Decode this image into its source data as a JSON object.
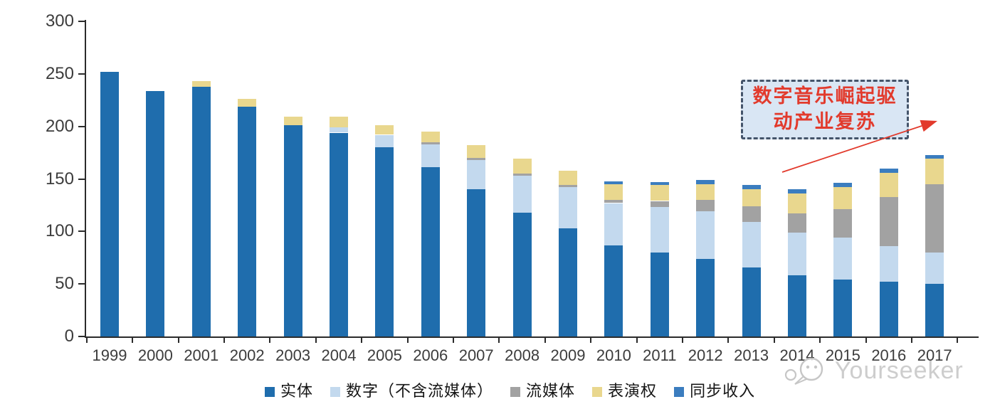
{
  "chart_data": {
    "type": "bar",
    "stacked": true,
    "title": "",
    "xlabel": "",
    "ylabel": "",
    "categories": [
      "1999",
      "2000",
      "2001",
      "2002",
      "2003",
      "2004",
      "2005",
      "2006",
      "2007",
      "2008",
      "2009",
      "2010",
      "2011",
      "2012",
      "2013",
      "2014",
      "2015",
      "2016",
      "2017"
    ],
    "series": [
      {
        "key": "physical",
        "name": "实体",
        "color": "#1f6dad",
        "values": [
          252,
          234,
          238,
          219,
          201,
          194,
          180,
          161,
          140,
          118,
          103,
          87,
          80,
          74,
          66,
          58,
          54,
          52,
          50
        ]
      },
      {
        "key": "digital-excl-streaming",
        "name": "数字（不含流媒体）",
        "color": "#c3d9ee",
        "values": [
          0,
          0,
          0,
          0,
          0,
          5,
          12,
          22,
          28,
          35,
          39,
          40,
          43,
          45,
          43,
          41,
          40,
          34,
          30
        ]
      },
      {
        "key": "streaming",
        "name": "流媒体",
        "color": "#a2a2a2",
        "values": [
          0,
          0,
          0,
          0,
          0,
          0,
          0,
          2,
          2,
          2,
          2,
          3,
          6,
          11,
          15,
          18,
          27,
          47,
          65
        ]
      },
      {
        "key": "performance-rights",
        "name": "表演权",
        "color": "#e9d78e",
        "values": [
          0,
          0,
          5,
          7,
          8,
          10,
          9,
          10,
          12,
          14,
          14,
          15,
          15,
          15,
          16,
          19,
          21,
          23,
          24
        ]
      },
      {
        "key": "sync-revenue",
        "name": "同步收入",
        "color": "#3b7dbf",
        "values": [
          0,
          0,
          0,
          0,
          0,
          0,
          0,
          0,
          0,
          0,
          0,
          3,
          3,
          4,
          4,
          4,
          4,
          4,
          4
        ]
      }
    ],
    "ylim": [
      0,
      300
    ],
    "y_ticks": [
      0,
      50,
      100,
      150,
      200,
      250,
      300
    ],
    "grid": false,
    "legend_position": "bottom"
  },
  "annotation": {
    "line1": "数字音乐崛起驱",
    "line2": "动产业复苏",
    "full_text": "数字音乐崛起驱动产业复苏",
    "fill_color": "#d9e6f4",
    "border_color": "#44546a",
    "text_color": "#e23a2c",
    "arrow_color": "#e23a2c"
  },
  "watermark": {
    "text": "Yourseeker",
    "logo": "chat-bubble-smiley-icon",
    "color": "#cbcbcb"
  }
}
